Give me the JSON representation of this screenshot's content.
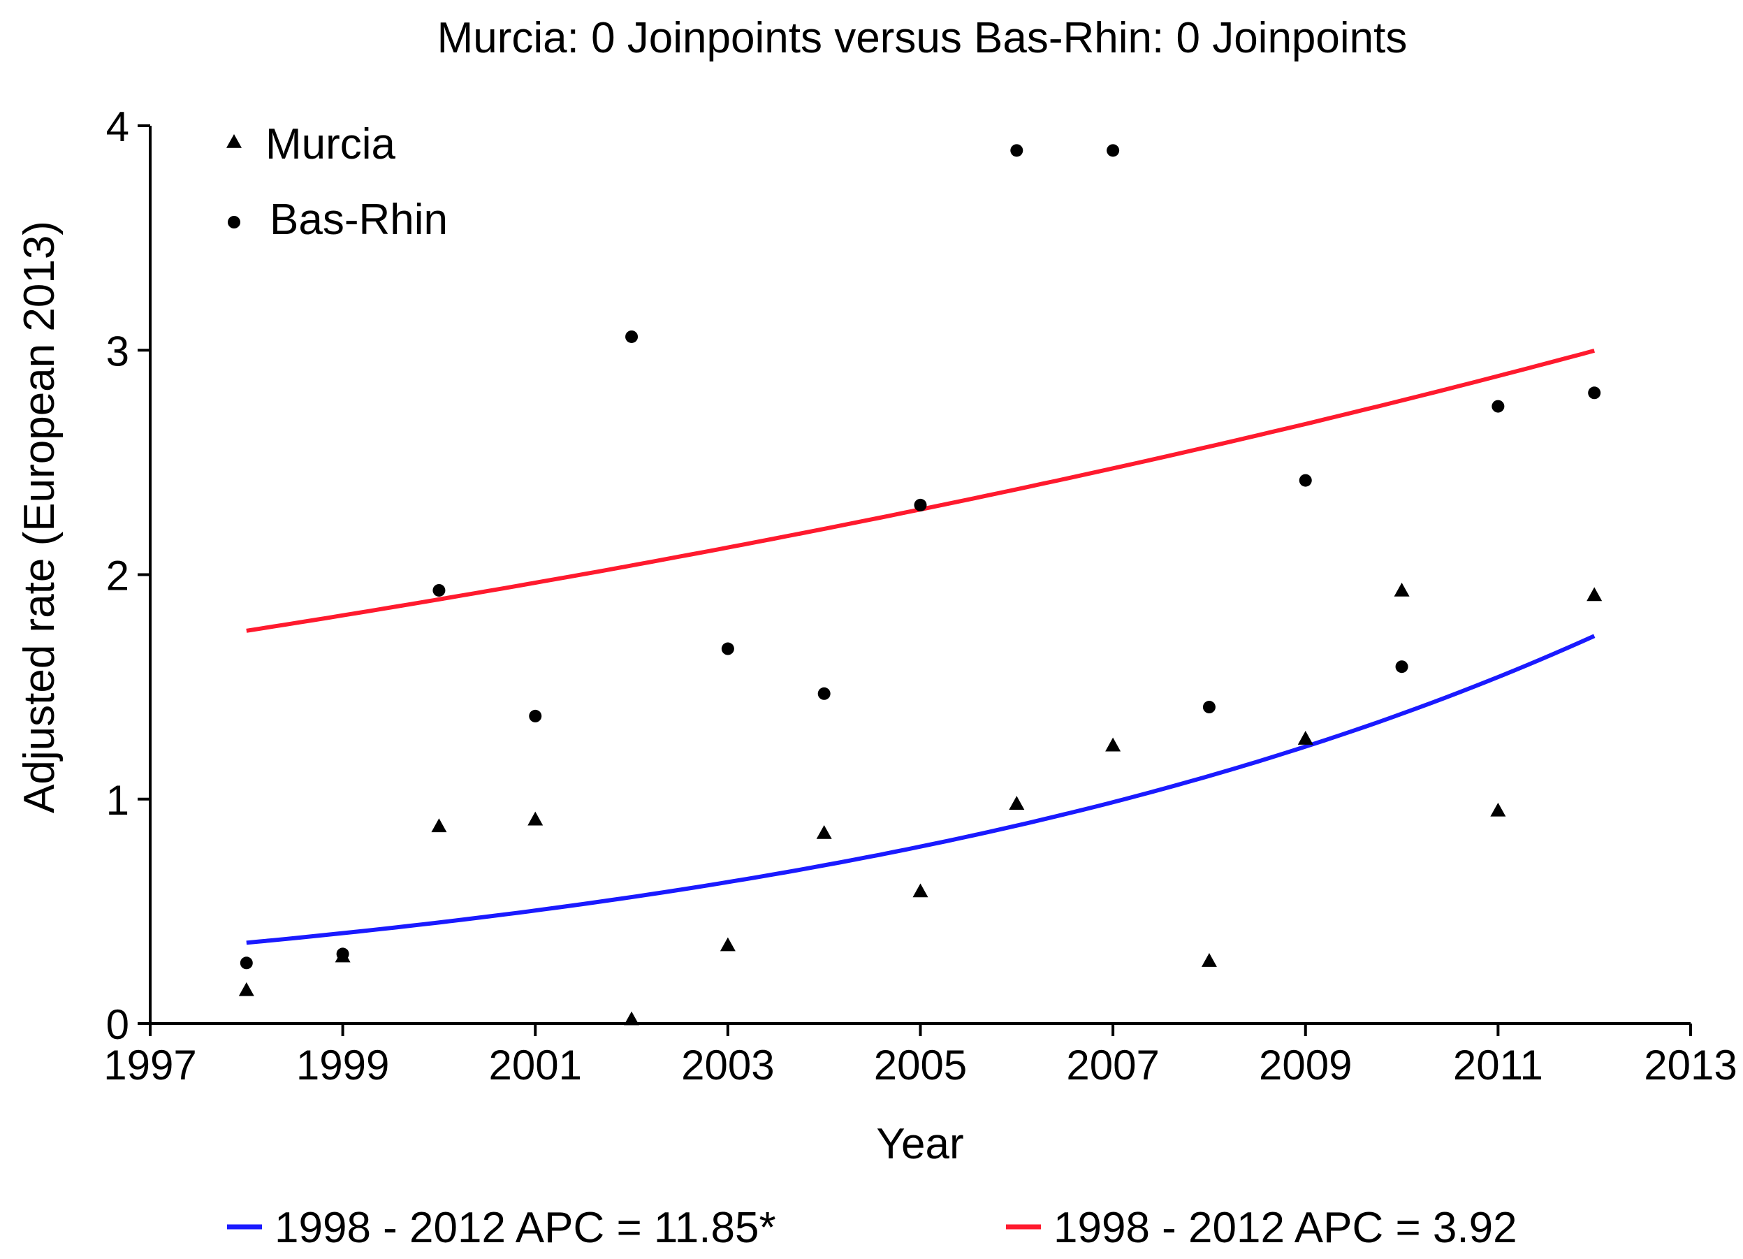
{
  "chart_data": {
    "type": "scatter",
    "title": "Murcia: 0 Joinpoints versus Bas-Rhin: 0 Joinpoints",
    "xlabel": "Year",
    "ylabel": "Adjusted rate (European 2013)",
    "xlim": [
      1997,
      2013
    ],
    "ylim": [
      0,
      4
    ],
    "xticks": [
      1997,
      1999,
      2001,
      2003,
      2005,
      2007,
      2009,
      2011,
      2013
    ],
    "yticks": [
      0,
      1,
      2,
      3,
      4
    ],
    "legend_position": "top-left",
    "series": [
      {
        "name": "Murcia",
        "marker": "triangle",
        "color": "#000000",
        "x": [
          1998,
          1999,
          2000,
          2001,
          2002,
          2003,
          2004,
          2005,
          2006,
          2007,
          2008,
          2009,
          2010,
          2011,
          2012
        ],
        "y": [
          0.15,
          0.3,
          0.88,
          0.91,
          0.02,
          0.35,
          0.85,
          0.59,
          0.98,
          1.24,
          0.28,
          1.27,
          1.93,
          0.95,
          1.91
        ]
      },
      {
        "name": "Bas-Rhin",
        "marker": "circle",
        "color": "#000000",
        "x": [
          1998,
          1999,
          2000,
          2001,
          2002,
          2003,
          2004,
          2005,
          2006,
          2007,
          2008,
          2009,
          2010,
          2011,
          2012
        ],
        "y": [
          0.27,
          0.31,
          1.93,
          1.37,
          3.06,
          1.67,
          1.47,
          2.31,
          3.89,
          3.89,
          1.41,
          2.42,
          1.59,
          2.75,
          2.81
        ]
      }
    ],
    "fits": [
      {
        "label": "1998 - 2012 APC = 11.85*",
        "color": "#1a1aff",
        "start_year": 1998,
        "end_year": 2012,
        "start_value": 0.36,
        "apc": 11.85
      },
      {
        "label": "1998 - 2012 APC = 3.92",
        "color": "#ff1a2e",
        "start_year": 1998,
        "end_year": 2012,
        "start_value": 1.75,
        "apc": 3.92
      }
    ]
  }
}
